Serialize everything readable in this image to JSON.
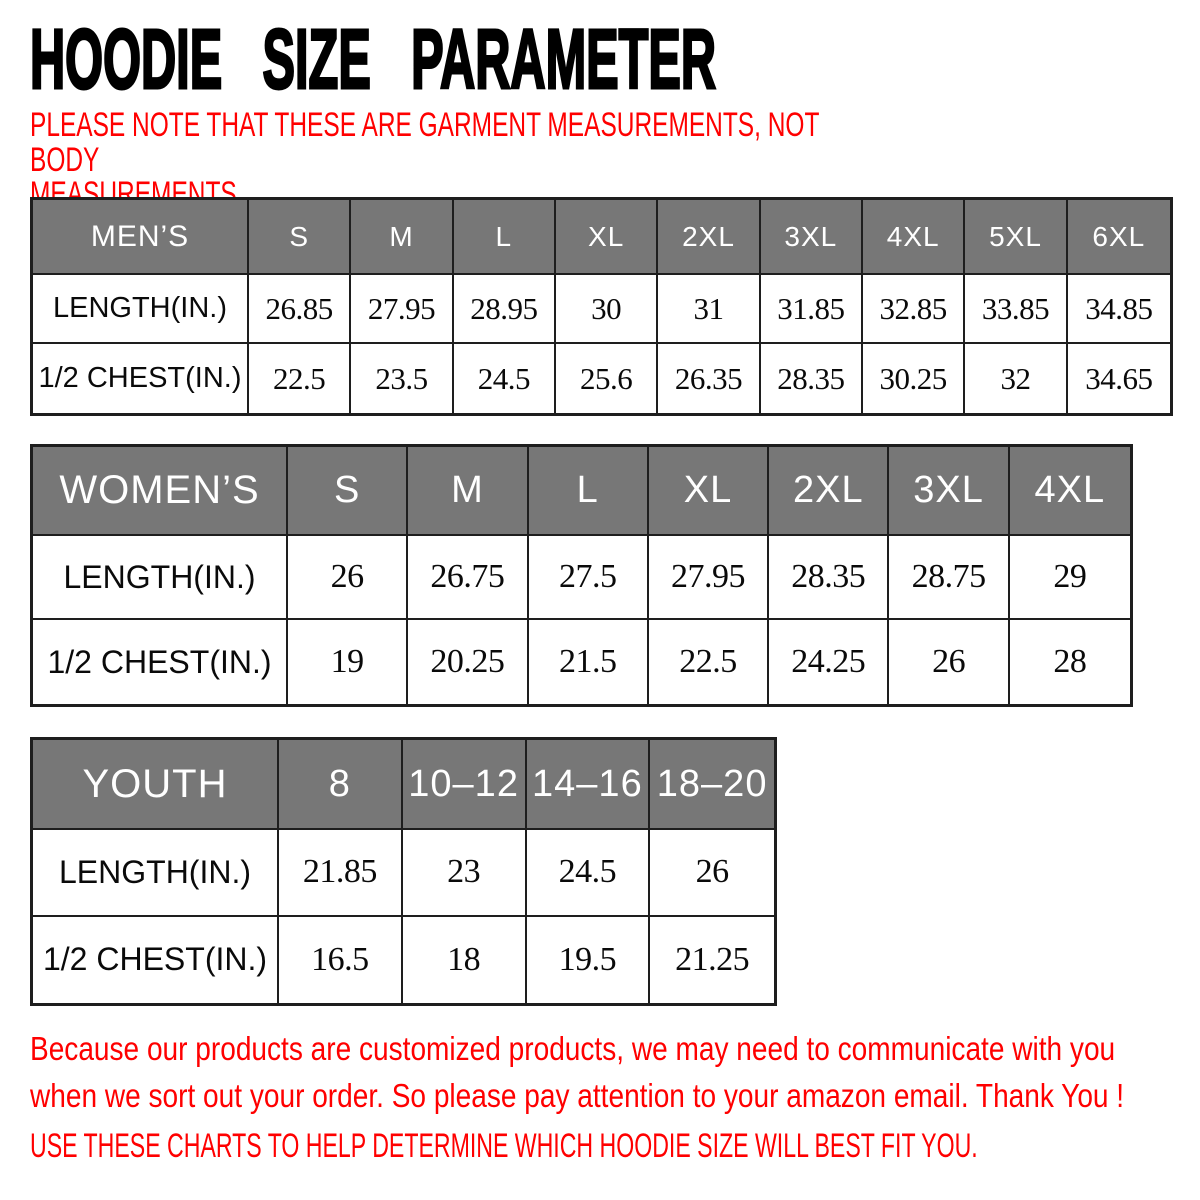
{
  "title": "HOODIE SIZE PARAMETER",
  "note_lines": [
    "PLEASE NOTE THAT THESE ARE GARMENT MEASUREMENTS, NOT BODY",
    "MEASUREMENTS"
  ],
  "colors": {
    "header_bg": "#777777",
    "header_text": "#ffffff",
    "accent_red": "#ff0000",
    "border": "#1e1e1e",
    "page_bg": "#ffffff"
  },
  "chart_data": [
    {
      "type": "table",
      "group": "MEN’S",
      "sizes": [
        "S",
        "M",
        "L",
        "XL",
        "2XL",
        "3XL",
        "4XL",
        "5XL",
        "6XL"
      ],
      "rows": [
        {
          "label": "LENGTH(IN.)",
          "values": [
            26.85,
            27.95,
            28.95,
            30,
            31,
            31.85,
            32.85,
            33.85,
            34.85
          ]
        },
        {
          "label": "1/2 CHEST(IN.)",
          "values": [
            22.5,
            23.5,
            24.5,
            25.6,
            26.35,
            28.35,
            30.25,
            32,
            34.65
          ]
        }
      ]
    },
    {
      "type": "table",
      "group": "WOMEN’S",
      "sizes": [
        "S",
        "M",
        "L",
        "XL",
        "2XL",
        "3XL",
        "4XL"
      ],
      "rows": [
        {
          "label": "LENGTH(IN.)",
          "values": [
            26,
            26.75,
            27.5,
            27.95,
            28.35,
            28.75,
            29
          ]
        },
        {
          "label": "1/2 CHEST(IN.)",
          "values": [
            19,
            20.25,
            21.5,
            22.5,
            24.25,
            26,
            28
          ]
        }
      ]
    },
    {
      "type": "table",
      "group": "YOUTH",
      "sizes": [
        "8",
        "10–12",
        "14–16",
        "18–20"
      ],
      "rows": [
        {
          "label": "LENGTH(IN.)",
          "values": [
            21.85,
            23,
            24.5,
            26
          ]
        },
        {
          "label": "1/2 CHEST(IN.)",
          "values": [
            16.5,
            18,
            19.5,
            21.25
          ]
        }
      ]
    }
  ],
  "footer": {
    "lines": [
      "Because our products are customized products, we may need to communicate with you",
      "when we sort out your order. So please pay attention to your amazon email. Thank You !"
    ],
    "caps_line": "USE THESE CHARTS TO HELP DETERMINE WHICH HOODIE SIZE WILL BEST FIT YOU."
  }
}
